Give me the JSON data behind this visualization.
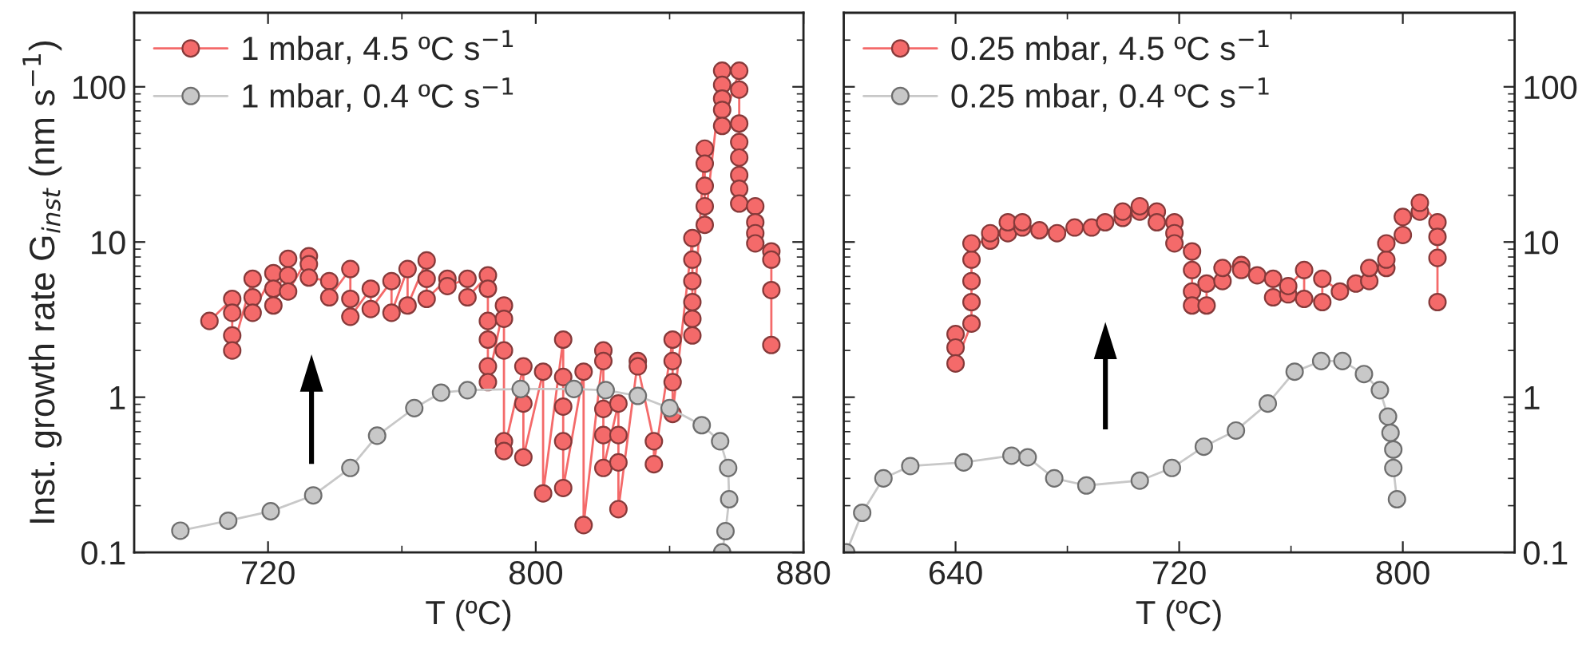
{
  "chart_data": [
    {
      "type": "line",
      "ylabel": "Inst. growth rate G$_{inst}$ (nm s$^{−1}$)",
      "xlabel": "T (ºC)",
      "log": "y",
      "grid": false,
      "legend": "top left",
      "marker": "circle",
      "line_style": "solid",
      "xlim": [
        680,
        880
      ],
      "xticks": [
        720,
        800,
        880
      ],
      "ylim": [
        0.1,
        300
      ],
      "yticks": [
        0.1,
        1,
        10,
        100
      ],
      "series": [
        {
          "name": "1 mbar, 4.5 ºC s$^{−1}$",
          "color": "#f46a6a",
          "x": [
            702.5,
            709.3,
            709.3,
            709.3,
            709.3,
            715.4,
            715.4,
            715.4,
            721.6,
            721.6,
            721.6,
            726,
            726,
            726,
            732.2,
            732.2,
            732.2,
            738.3,
            738.3,
            744.6,
            744.6,
            744.6,
            750.7,
            750.7,
            756.9,
            756.9,
            761.7,
            761.7,
            767.4,
            767.4,
            767.4,
            773.6,
            773.6,
            779.6,
            779.6,
            785.7,
            785.7,
            785.7,
            785.7,
            785.7,
            785.7,
            790.5,
            790.5,
            790.5,
            790.5,
            790.5,
            796.3,
            796.3,
            796.3,
            802.2,
            802.2,
            808.2,
            808.2,
            808.2,
            808.2,
            808.2,
            814.3,
            814.3,
            820.2,
            820.2,
            820.2,
            820.2,
            820.2,
            824.7,
            824.7,
            824.7,
            824.7,
            830.5,
            830.5,
            835.3,
            835.3,
            840.9,
            840.9,
            840.9,
            840.9,
            846.8,
            846.8,
            846.8,
            846.8,
            846.8,
            846.8,
            850.5,
            850.5,
            850.5,
            850.5,
            850.5,
            855.7,
            855.7,
            855.7,
            855.7,
            855.7,
            860.8,
            860.8,
            860.8,
            860.8,
            860.8,
            860.8,
            860.8,
            860.8,
            865.6,
            865.6,
            865.6,
            865.6,
            870.4,
            870.4,
            870.4,
            870.4
          ],
          "values": [
            3.1,
            4.3,
            3.5,
            2.5,
            2.0,
            5.8,
            4.4,
            3.5,
            6.3,
            5.0,
            3.9,
            7.8,
            6.1,
            4.8,
            8.1,
            7.2,
            5.9,
            5.6,
            4.4,
            6.7,
            4.3,
            3.3,
            5.0,
            3.7,
            5.6,
            3.5,
            6.7,
            3.9,
            7.6,
            5.8,
            4.3,
            5.8,
            5.2,
            5.8,
            4.4,
            6.1,
            5.0,
            3.1,
            2.35,
            1.58,
            1.25,
            3.9,
            3.2,
            2.0,
            0.52,
            0.45,
            1.58,
            0.91,
            0.41,
            1.46,
            0.24,
            2.35,
            1.35,
            0.87,
            0.52,
            0.26,
            1.46,
            0.15,
            2.0,
            1.71,
            0.84,
            0.57,
            0.35,
            0.91,
            0.57,
            0.38,
            0.19,
            1.71,
            1.58,
            0.52,
            0.37,
            2.35,
            1.71,
            1.25,
            0.78,
            10.6,
            7.7,
            5.6,
            4.1,
            3.2,
            2.5,
            40,
            32,
            23,
            17,
            12.9,
            127,
            103,
            84,
            71,
            56,
            127,
            96,
            58,
            44,
            35,
            27,
            22,
            17.7,
            17,
            13.4,
            11.4,
            9.8,
            8.7,
            7.7,
            4.9,
            2.17
          ]
        },
        {
          "name": "1 mbar, 0.4 ºC s$^{−1}$",
          "color": "#c8c8c8",
          "x": [
            693.8,
            708.1,
            720.8,
            733.5,
            744.6,
            752.6,
            763.7,
            771.7,
            779.6,
            795.5,
            811.4,
            820.9,
            830.5,
            840,
            849.6,
            855.1,
            857.5,
            857.8,
            856.7,
            855.7
          ],
          "values": [
            0.138,
            0.16,
            0.184,
            0.233,
            0.35,
            0.565,
            0.85,
            1.07,
            1.11,
            1.13,
            1.13,
            1.11,
            1.02,
            0.85,
            0.66,
            0.52,
            0.35,
            0.22,
            0.137,
            0.1
          ]
        }
      ]
    },
    {
      "type": "line",
      "xlabel": "T (ºC)",
      "log": "y",
      "grid": false,
      "legend": "top left",
      "marker": "circle",
      "line_style": "solid",
      "xlim": [
        600,
        840
      ],
      "xticks": [
        640,
        720,
        800
      ],
      "ylim": [
        0.1,
        300
      ],
      "yticks": [
        0.1,
        1,
        10,
        100
      ],
      "series": [
        {
          "name": "0.25 mbar, 4.5 ºC s$^{−1}$",
          "color": "#f46a6a",
          "x": [
            640,
            640,
            640,
            645.7,
            645.7,
            645.7,
            645.7,
            645.7,
            652.4,
            652.4,
            658.7,
            658.7,
            663.9,
            663.9,
            670,
            676.3,
            682.6,
            688.7,
            693.5,
            699.8,
            699.8,
            705.9,
            705.9,
            712,
            712,
            718.3,
            718.3,
            718.3,
            724.6,
            724.6,
            724.6,
            724.6,
            729.8,
            729.8,
            735.5,
            735.5,
            742.2,
            742.2,
            747.9,
            753.6,
            753.6,
            759,
            759,
            764.7,
            764.7,
            771.2,
            771.2,
            777.5,
            783.2,
            788,
            788,
            794.1,
            794.1,
            794.1,
            800,
            800,
            806.1,
            806.1,
            812.4,
            812.4,
            812.4,
            812.4
          ],
          "values": [
            2.55,
            2.09,
            1.65,
            2.98,
            4.1,
            5.6,
            7.7,
            9.8,
            10.2,
            11.4,
            11.4,
            13.4,
            12.4,
            13.4,
            11.9,
            11.4,
            12.4,
            12.4,
            13.4,
            14.3,
            15.7,
            15.7,
            17,
            15.7,
            13.4,
            13.4,
            11.4,
            9.8,
            8.7,
            6.6,
            4.8,
            3.9,
            3.9,
            5.4,
            5.6,
            6.8,
            7.1,
            6.6,
            6.1,
            5.8,
            4.4,
            4.6,
            5.2,
            6.6,
            4.3,
            4.1,
            5.8,
            4.8,
            5.4,
            5.6,
            6.8,
            6.8,
            7.7,
            9.8,
            11.1,
            14.5,
            15.7,
            17.9,
            13.4,
            10.8,
            7.9,
            4.1
          ]
        },
        {
          "name": "0.25 mbar, 0.4 ºC s$^{−1}$",
          "color": "#c8c8c8",
          "x": [
            600.9,
            606.6,
            614.2,
            623.8,
            642.9,
            660,
            665.8,
            675.3,
            686.8,
            705.9,
            717.4,
            728.8,
            740.3,
            751.7,
            761.3,
            770.8,
            778.4,
            786.1,
            791.8,
            794.7,
            795.6,
            796.6,
            796.6,
            797.9
          ],
          "values": [
            0.1,
            0.18,
            0.3,
            0.36,
            0.38,
            0.42,
            0.41,
            0.3,
            0.27,
            0.29,
            0.35,
            0.48,
            0.61,
            0.91,
            1.46,
            1.71,
            1.71,
            1.41,
            1.11,
            0.75,
            0.59,
            0.46,
            0.35,
            0.22
          ]
        }
      ]
    }
  ]
}
